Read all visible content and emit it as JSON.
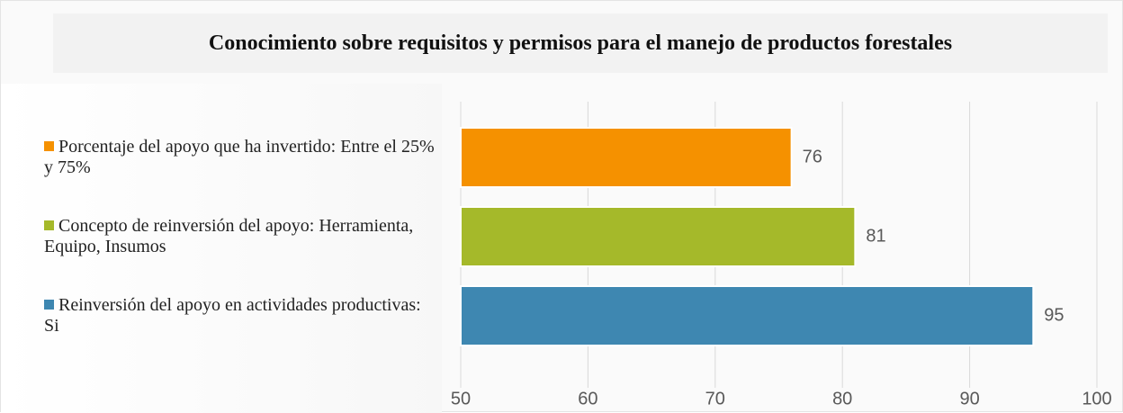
{
  "chart_data": {
    "type": "bar",
    "orientation": "horizontal",
    "title": "Conocimiento sobre requisitos y permisos para el manejo de productos forestales",
    "categories": [
      "Porcentaje del apoyo que ha invertido: Entre el 25% y 75%",
      "Concepto de reinversión del apoyo: Herramienta, Equipo, Insumos",
      "Reinversión del apoyo en actividades productivas: Si"
    ],
    "values": [
      76,
      81,
      95
    ],
    "colors": [
      "#f59100",
      "#a5b92a",
      "#3e87b1"
    ],
    "xlim": [
      50,
      100
    ],
    "xticks": [
      50,
      60,
      70,
      80,
      90,
      100
    ],
    "grid": true
  }
}
